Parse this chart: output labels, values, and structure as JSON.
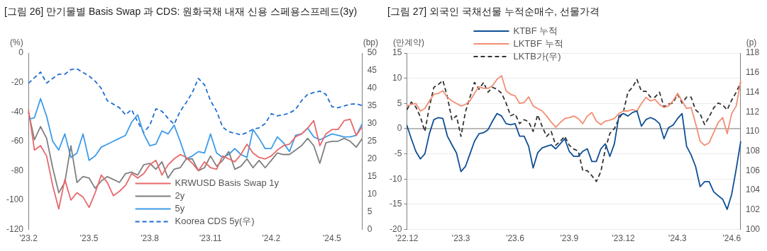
{
  "chart_data": [
    {
      "type": "line",
      "title": "[그림 26] 만기물별 Basis Swap 과 CDS: 원화국채 내재 신용 스페용스프레드(3y)",
      "ylabel": "(%)",
      "y2label": "(bp)",
      "categories": [
        "'23.2",
        null,
        null,
        null,
        null,
        null,
        null,
        null,
        null,
        null,
        "'23.5",
        null,
        null,
        null,
        null,
        null,
        null,
        null,
        null,
        null,
        "'23.8",
        null,
        null,
        null,
        null,
        null,
        null,
        null,
        null,
        null,
        "'23.11",
        null,
        null,
        null,
        null,
        null,
        null,
        null,
        null,
        null,
        "'24.2",
        null,
        null,
        null,
        null,
        null,
        null,
        null,
        null,
        null,
        "'24.5",
        null,
        null,
        null,
        null,
        null
      ],
      "series": [
        {
          "name": "KRWUSD Basis Swap 1y",
          "color": "#e8696b",
          "values": [
            -38,
            -66,
            -63,
            -70,
            -90,
            -106,
            -86,
            -100,
            -95,
            -98,
            -105,
            -95,
            -83,
            -88,
            -97,
            -94,
            -90,
            -82,
            -85,
            -82,
            -76,
            -73,
            -83,
            -76,
            -72,
            -69,
            -71,
            -75,
            -80,
            -74,
            -78,
            -79,
            -70,
            -72,
            -74,
            -69,
            -62,
            -68,
            -71,
            -72,
            -70,
            -66,
            -63,
            -62,
            -57,
            -55,
            -51,
            -46,
            -63,
            -55,
            -52,
            -52,
            -46,
            -45,
            -56,
            -50
          ]
        },
        {
          "name": "2y",
          "color": "#7f7f7f",
          "values": [
            -40,
            -59,
            -50,
            -58,
            -78,
            -95,
            -88,
            -63,
            -88,
            -84,
            -85,
            -92,
            -87,
            -84,
            -86,
            -88,
            -82,
            -81,
            -83,
            -76,
            -75,
            -79,
            -74,
            -85,
            -79,
            -78,
            -72,
            -72,
            -80,
            -78,
            -70,
            -77,
            -73,
            -67,
            -79,
            -77,
            -72,
            -78,
            -73,
            -78,
            -73,
            -68,
            -69,
            -69,
            -66,
            -63,
            -58,
            -63,
            -75,
            -61,
            -60,
            -60,
            -58,
            -60,
            -64,
            -58
          ]
        },
        {
          "name": "5y",
          "color": "#3d9be9",
          "values": [
            -45,
            -44,
            -31,
            -43,
            -60,
            -66,
            -55,
            -71,
            -68,
            -55,
            -73,
            -70,
            -64,
            -62,
            -60,
            -58,
            -56,
            -47,
            -42,
            -55,
            -63,
            -62,
            -53,
            -55,
            -49,
            -60,
            -72,
            -70,
            -67,
            -68,
            -55,
            -68,
            -71,
            -69,
            -65,
            -69,
            -71,
            -52,
            -58,
            -65,
            -65,
            -57,
            -61,
            -67,
            -56,
            -55,
            -51,
            -57,
            -59,
            -57,
            -55,
            -56,
            -57,
            -57,
            -56,
            -48
          ]
        },
        {
          "name": "Koorea CDS 5y(우)",
          "color": "#1f6fd1",
          "axis": "y2",
          "line_style": "dashed",
          "values": [
            41.4,
            43,
            44.6,
            41.5,
            42.8,
            44,
            44,
            45.3,
            45.5,
            44.5,
            43.5,
            42,
            40,
            36.5,
            35.5,
            34.5,
            32.5,
            34,
            30.5,
            27.5,
            29.5,
            34.2,
            33.5,
            31.5,
            29.8,
            33.5,
            36,
            38.8,
            42.8,
            41,
            36.5,
            33.5,
            29,
            27.7,
            27.3,
            26.8,
            27.5,
            28.4,
            28.8,
            30,
            32.8,
            32.2,
            32.5,
            33,
            34,
            36.5,
            38.3,
            38.8,
            39.2,
            38.3,
            34.8,
            34.5,
            35,
            35.5,
            35.6,
            35.1
          ]
        }
      ],
      "ylim": [
        -120,
        0
      ],
      "yticks": [
        -120,
        -100,
        -80,
        -60,
        -40,
        -20,
        0
      ],
      "y2lim": [
        0,
        50
      ],
      "y2ticks": [
        0,
        5,
        10,
        15,
        20,
        25,
        30,
        35,
        40,
        45,
        50
      ],
      "grid": false,
      "legend": "bottom",
      "marker": "none",
      "line_style": "solid"
    },
    {
      "type": "line",
      "title": "[그림 27] 외국인 국채선물 누적순매수, 선물가격",
      "ylabel": "(만계약)",
      "y2label": "(p)",
      "categories": [
        "'22.12",
        null,
        null,
        null,
        null,
        null,
        null,
        null,
        null,
        null,
        null,
        null,
        "'23.3",
        null,
        null,
        null,
        null,
        null,
        null,
        null,
        null,
        null,
        null,
        null,
        "'23.6",
        null,
        null,
        null,
        null,
        null,
        null,
        null,
        null,
        null,
        null,
        null,
        "'23.9",
        null,
        null,
        null,
        null,
        null,
        null,
        null,
        null,
        null,
        null,
        null,
        "'23.12",
        null,
        null,
        null,
        null,
        null,
        null,
        null,
        null,
        null,
        null,
        null,
        "'24.3",
        null,
        null,
        null,
        null,
        null,
        null,
        null,
        null,
        null,
        null,
        null,
        "'24.6",
        null,
        null
      ],
      "series": [
        {
          "name": "KTBF 누적",
          "color": "#0f4f96",
          "values": [
            0.7,
            -2,
            -4.5,
            -6,
            -5,
            -1,
            1.8,
            2.2,
            2,
            -1.5,
            -3.2,
            -4.8,
            -8.5,
            -7.5,
            -5,
            -2.5,
            -1,
            -0.8,
            -0.2,
            1.5,
            3,
            2.5,
            1,
            0.8,
            1,
            -1.5,
            -1.5,
            -3.5,
            -7.8,
            -4.8,
            -3.8,
            -3.5,
            -3.2,
            -4,
            -3,
            -2,
            -4.5,
            -5.5,
            -5.5,
            -4.5,
            -4,
            -6.5,
            -6.5,
            -4,
            -3,
            -5.5,
            -3,
            2.5,
            3,
            2.5,
            3.2,
            3.5,
            0.5,
            1.8,
            2.2,
            1.8,
            1,
            -2,
            0.2,
            0.7,
            2,
            3,
            -3.5,
            -5.2,
            -7.5,
            -11.5,
            -10.5,
            -10.5,
            -12.5,
            -13.3,
            -14,
            -16,
            -13,
            -8,
            -2.5
          ]
        },
        {
          "name": "LKTBF 누적",
          "color": "#f28e73",
          "values": [
            4.5,
            4.8,
            5,
            3.5,
            4,
            5.5,
            6.8,
            7,
            7.5,
            6.2,
            5.5,
            5,
            4.5,
            4.8,
            5.5,
            7,
            8.3,
            8,
            8,
            8.5,
            9.8,
            10.5,
            7.5,
            6.8,
            6.5,
            5,
            5.2,
            6.3,
            4.5,
            4,
            3.5,
            2.5,
            1.3,
            0.3,
            1.2,
            2,
            2.2,
            2.5,
            2,
            1,
            2.5,
            3.2,
            1.5,
            0.8,
            1.5,
            1.7,
            2,
            3,
            3.5,
            3.5,
            3.8,
            3.5,
            5,
            6.2,
            5.5,
            5.8,
            4.8,
            4.2,
            4.5,
            5.5,
            7,
            5.5,
            4,
            4.2,
            1,
            -2.5,
            -3.3,
            -2.8,
            -0.8,
            1.2,
            2.2,
            -1,
            3,
            4.5,
            9.5
          ]
        },
        {
          "name": "LKTB가(우)",
          "color": "#333333",
          "axis": "y2",
          "line_style": "dashed",
          "values": [
            112.2,
            113,
            112.5,
            111.5,
            110,
            112.5,
            114.5,
            114.8,
            115.2,
            113.5,
            111.2,
            111.6,
            109.5,
            112,
            113.5,
            115,
            114.3,
            115,
            114,
            114.5,
            114.3,
            113.9,
            112.9,
            111.6,
            111.8,
            110.8,
            111.2,
            111,
            110,
            111.7,
            110.5,
            109.5,
            110,
            108.6,
            109,
            109.5,
            108.6,
            108.2,
            108,
            106,
            106,
            105.5,
            104.9,
            105.9,
            108.2,
            109.8,
            110.3,
            111.3,
            112,
            114,
            114.5,
            115.3,
            114.1,
            114.1,
            113.5,
            113.5,
            114,
            112.5,
            112.8,
            112.9,
            113.8,
            112.9,
            113.5,
            113.5,
            112.2,
            111.8,
            110.7,
            111.5,
            112.4,
            112.9,
            112.7,
            112.2,
            113.2,
            114,
            115
          ]
        }
      ],
      "ylim": [
        -20,
        15
      ],
      "yticks": [
        -20,
        -15,
        -10,
        -5,
        0,
        5,
        10,
        15
      ],
      "y2lim": [
        100,
        118
      ],
      "y2ticks": [
        100,
        102,
        104,
        106,
        108,
        110,
        112,
        114,
        116,
        118
      ],
      "ref_lines": [
        {
          "axis": "y",
          "value": 0,
          "color": "#808080"
        }
      ],
      "grid": "y",
      "legend": "top",
      "marker": "none",
      "line_style": "solid"
    }
  ]
}
